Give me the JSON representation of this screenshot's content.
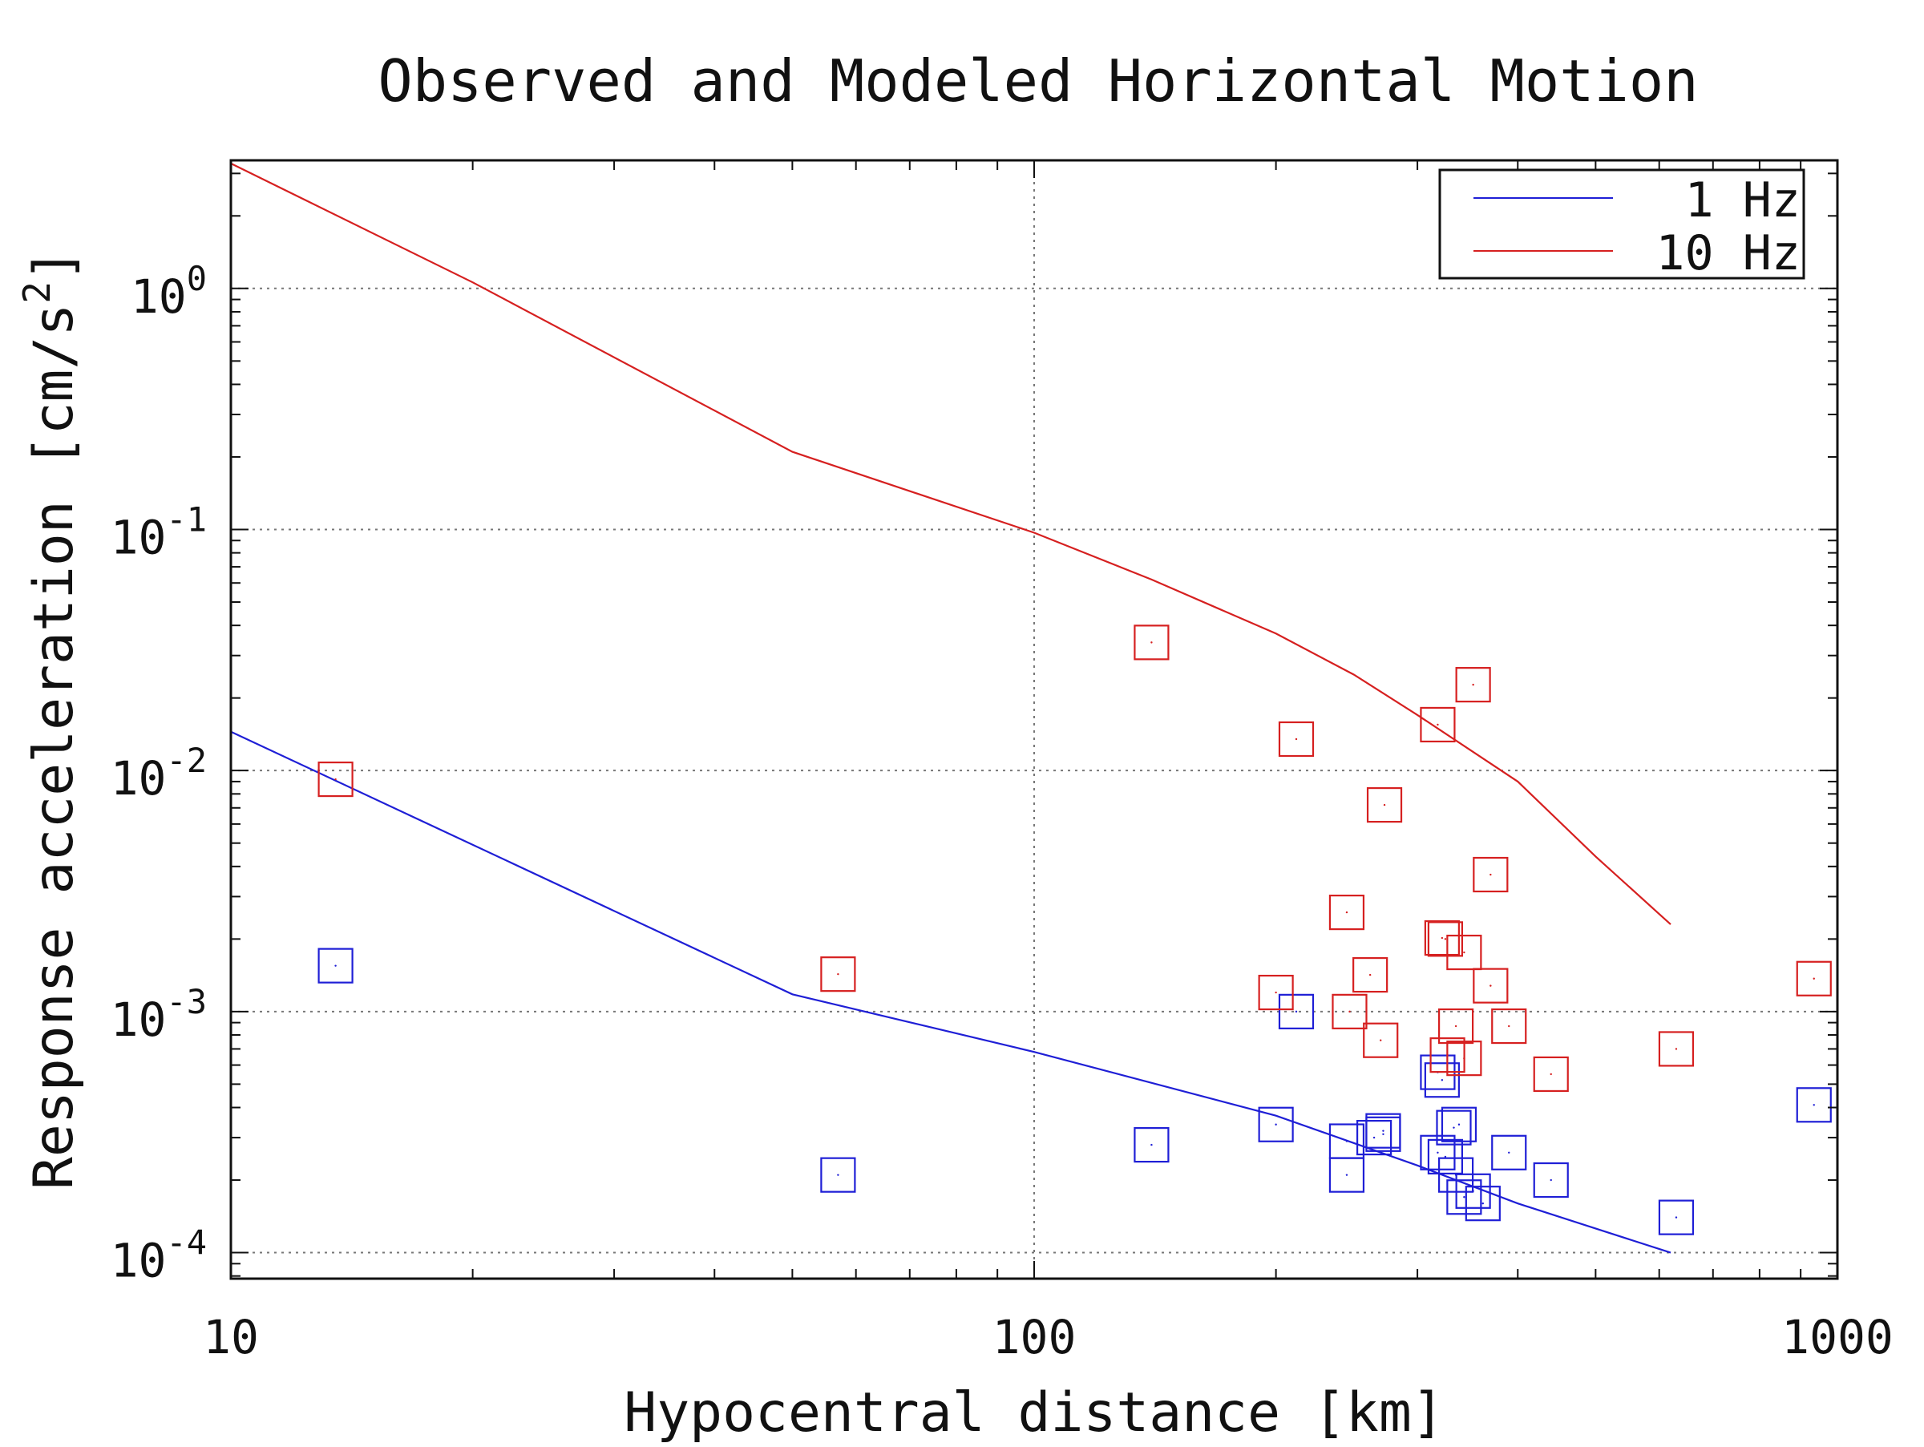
{
  "chart_data": {
    "type": "scatter",
    "title": "Observed and Modeled Horizontal Motion",
    "xlabel": "Hypocentral distance [km]",
    "ylabel": {
      "main": "Response acceleration [cm/s",
      "sup": "2",
      "close": "]"
    },
    "x_scale": "log",
    "y_scale": "log",
    "xlim": [
      10,
      1000
    ],
    "ylim": [
      7.8e-05,
      3.4
    ],
    "grid": true,
    "legend_position": "top-right",
    "x_ticks": [
      {
        "value": 10,
        "label": "10"
      },
      {
        "value": 100,
        "label": "100"
      },
      {
        "value": 1000,
        "label": "1000"
      }
    ],
    "y_ticks": [
      {
        "value": 1,
        "base": "10",
        "exp": "0"
      },
      {
        "value": 0.1,
        "base": "10",
        "exp": "-1"
      },
      {
        "value": 0.01,
        "base": "10",
        "exp": "-2"
      },
      {
        "value": 0.001,
        "base": "10",
        "exp": "-3"
      },
      {
        "value": 0.0001,
        "base": "10",
        "exp": "-4"
      }
    ],
    "series": [
      {
        "name": "1 Hz",
        "color": "#1f1fd6",
        "line": [
          [
            10,
            0.0145
          ],
          [
            50,
            0.00118
          ],
          [
            100,
            0.00068
          ],
          [
            200,
            0.00037
          ],
          [
            300,
            0.00023
          ],
          [
            400,
            0.00016
          ],
          [
            620,
            0.0001
          ]
        ],
        "points": [
          [
            13.5,
            0.00155
          ],
          [
            57,
            0.00021
          ],
          [
            140,
            0.00028
          ],
          [
            200,
            0.00034
          ],
          [
            212,
            0.001
          ],
          [
            245,
            0.00029
          ],
          [
            245,
            0.00021
          ],
          [
            265,
            0.0003
          ],
          [
            272,
            0.00032
          ],
          [
            272,
            0.00031
          ],
          [
            318,
            0.00056
          ],
          [
            322,
            0.00052
          ],
          [
            318,
            0.00026
          ],
          [
            325,
            0.00025
          ],
          [
            333,
            0.00033
          ],
          [
            338,
            0.00034
          ],
          [
            335,
            0.00021
          ],
          [
            343,
            0.00017
          ],
          [
            352,
            0.00018
          ],
          [
            362,
            0.00016
          ],
          [
            390,
            0.00026
          ],
          [
            440,
            0.0002
          ],
          [
            630,
            0.00014
          ],
          [
            935,
            0.00041
          ]
        ]
      },
      {
        "name": "10 Hz",
        "color": "#d62020",
        "line": [
          [
            10,
            3.3
          ],
          [
            20,
            1.06
          ],
          [
            50,
            0.21
          ],
          [
            100,
            0.097
          ],
          [
            140,
            0.062
          ],
          [
            200,
            0.037
          ],
          [
            250,
            0.025
          ],
          [
            300,
            0.017
          ],
          [
            400,
            0.009
          ],
          [
            500,
            0.0044
          ],
          [
            620,
            0.0023
          ]
        ],
        "points": [
          [
            13.5,
            0.0092
          ],
          [
            57,
            0.00143
          ],
          [
            140,
            0.034
          ],
          [
            200,
            0.0012
          ],
          [
            212,
            0.0135
          ],
          [
            245,
            0.00258
          ],
          [
            247,
            0.001
          ],
          [
            262,
            0.00142
          ],
          [
            270,
            0.00076
          ],
          [
            273,
            0.0072
          ],
          [
            318,
            0.0155
          ],
          [
            322,
            0.00202
          ],
          [
            325,
            0.002
          ],
          [
            327,
            0.00066
          ],
          [
            335,
            0.00087
          ],
          [
            343,
            0.00176
          ],
          [
            352,
            0.0227
          ],
          [
            343,
            0.00064
          ],
          [
            370,
            0.00128
          ],
          [
            370,
            0.0037
          ],
          [
            390,
            0.00087
          ],
          [
            440,
            0.00055
          ],
          [
            630,
            0.0007
          ],
          [
            935,
            0.00137
          ]
        ]
      }
    ]
  }
}
